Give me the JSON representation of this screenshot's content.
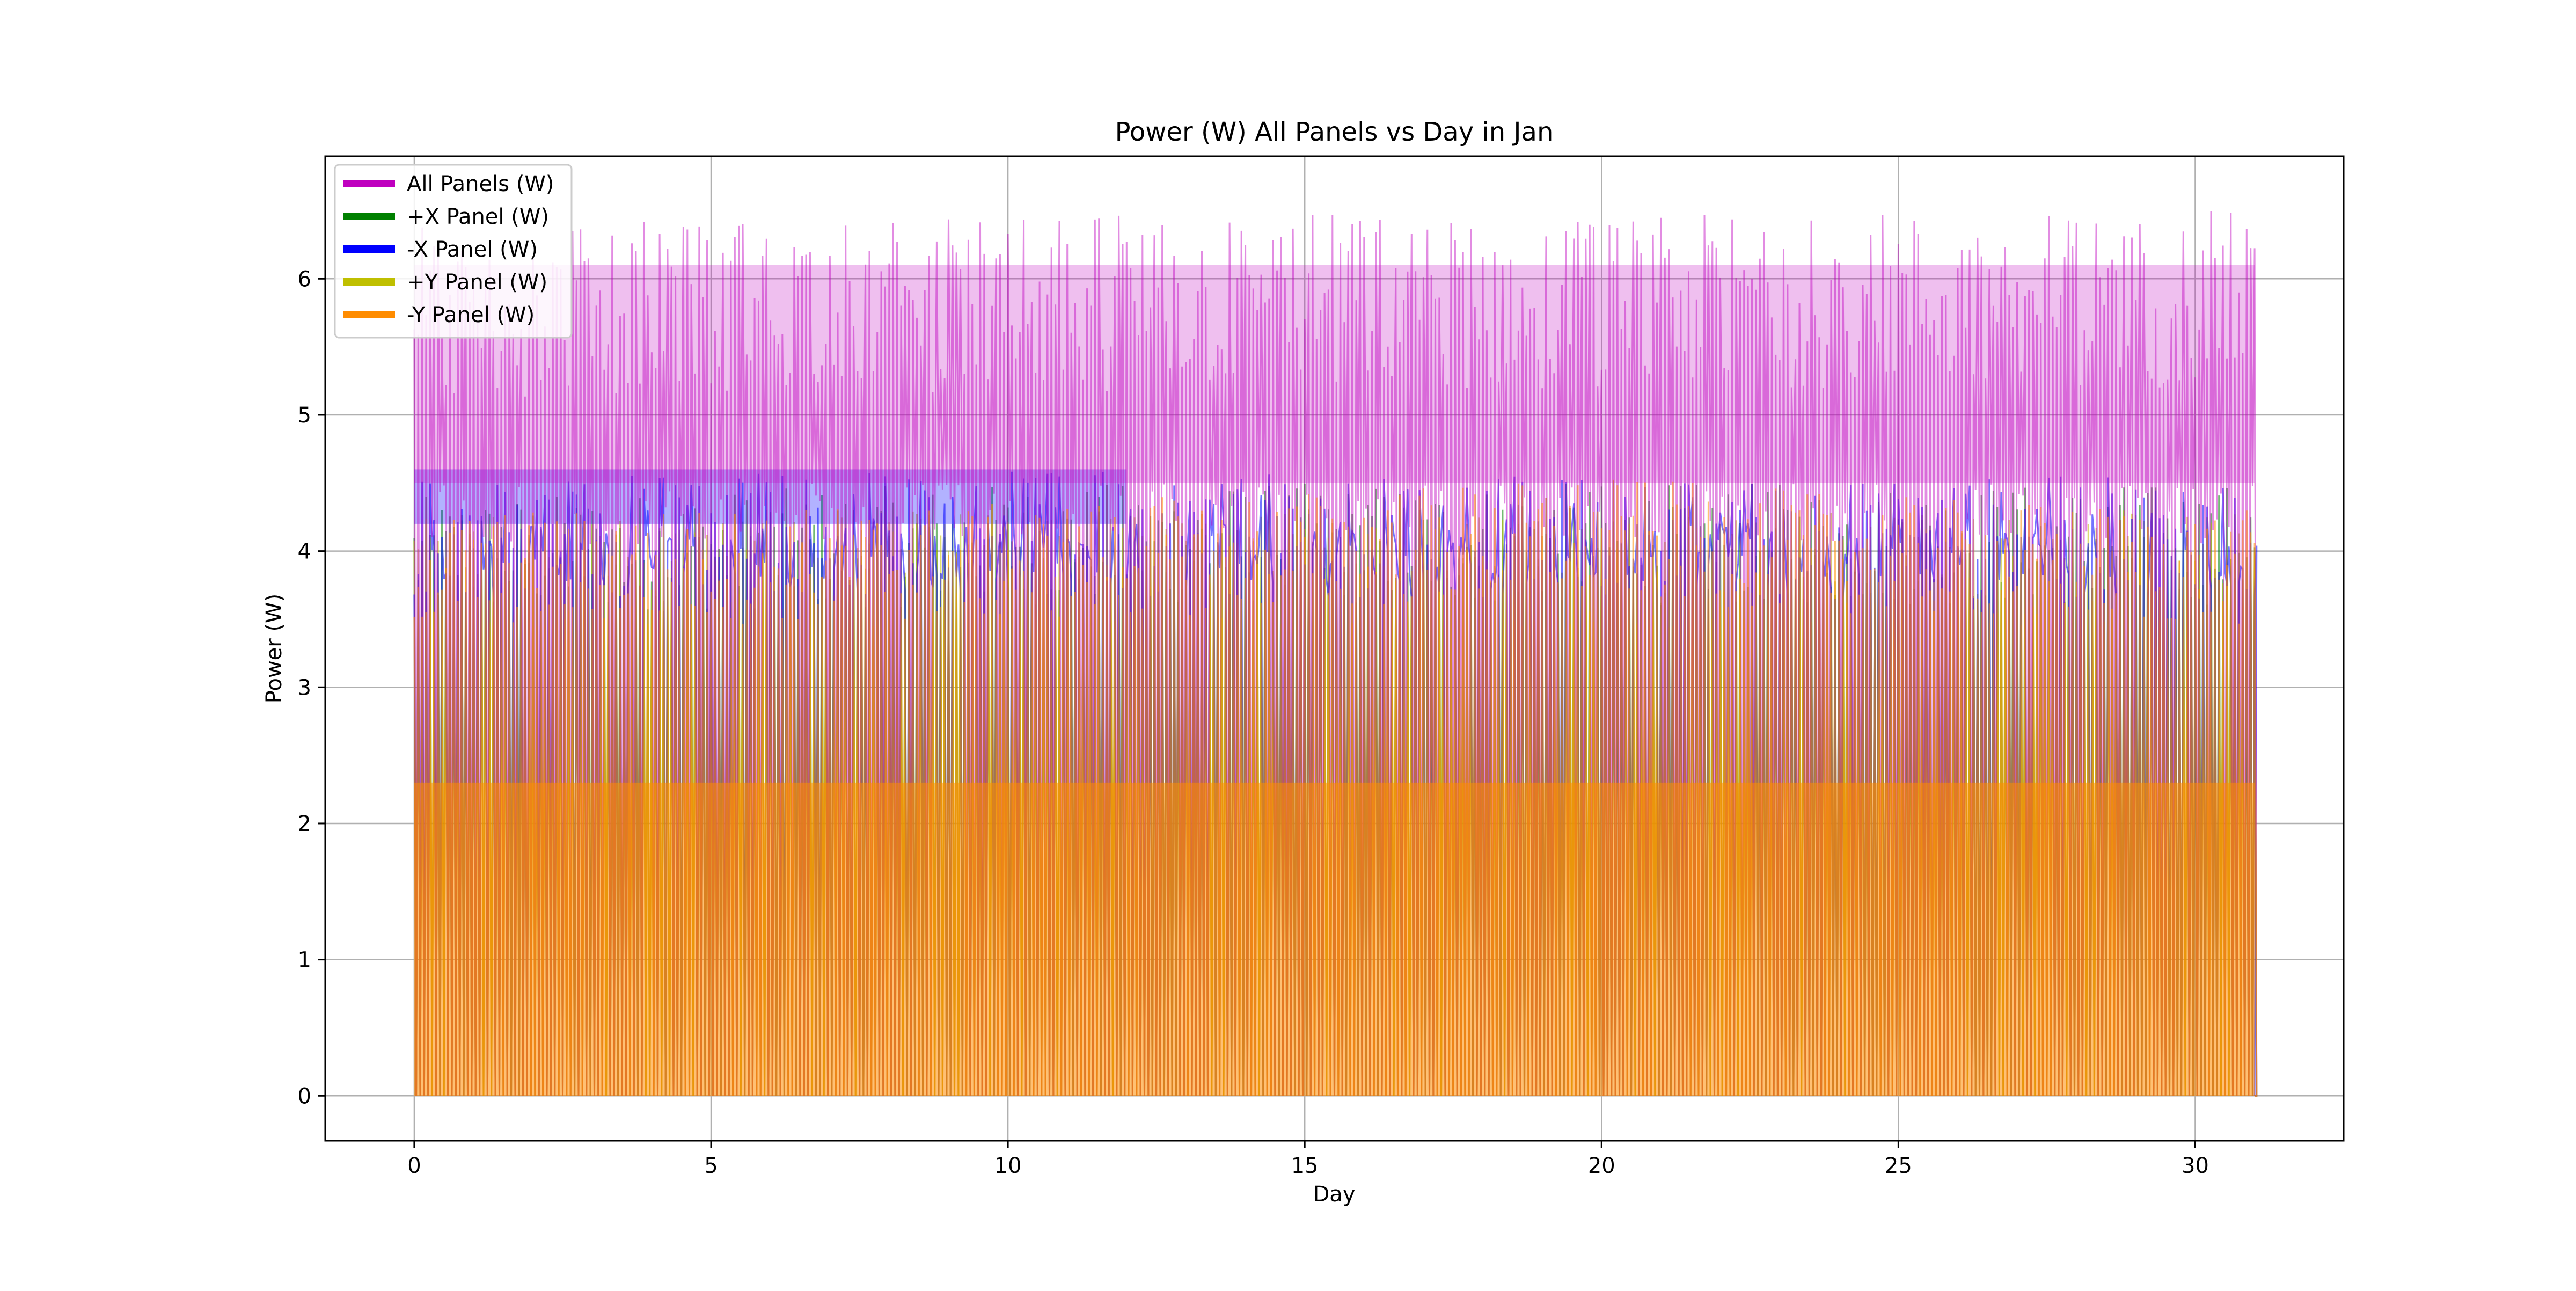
{
  "chart_data": {
    "type": "line",
    "title": "Power (W) All Panels vs Day in Jan",
    "xlabel": "Day",
    "ylabel": "Power (W)",
    "xlim": [
      -1.5,
      32.5
    ],
    "ylim": [
      -0.33,
      6.9
    ],
    "xticks": [
      0,
      5,
      10,
      15,
      20,
      25,
      30
    ],
    "yticks": [
      0,
      1,
      2,
      3,
      4,
      5,
      6
    ],
    "grid": true,
    "legend_position": "top-left",
    "x_range": [
      0,
      31
    ],
    "sampling": "approx. 15 orbital passes per day, oscillating between 0 W and peak",
    "series": [
      {
        "name": "All Panels (W)",
        "color": "#bf00bf",
        "peak_approx": 6.45,
        "trough_approx": 0.0,
        "dense_band": [
          4.5,
          6.1
        ],
        "envelope_points": [
          [
            0,
            6.4
          ],
          [
            5,
            6.45
          ],
          [
            10,
            6.45
          ],
          [
            15,
            6.5
          ],
          [
            20,
            6.45
          ],
          [
            25,
            6.5
          ],
          [
            30,
            6.5
          ],
          [
            31,
            6.5
          ]
        ]
      },
      {
        "name": "+X Panel (W)",
        "color": "#008000",
        "peak_approx": 4.5,
        "trough_approx": 0.0,
        "envelope_points": [
          [
            0,
            4.4
          ],
          [
            10,
            4.5
          ],
          [
            20,
            4.5
          ],
          [
            31,
            4.5
          ]
        ]
      },
      {
        "name": "-X Panel (W)",
        "color": "#0000ff",
        "peak_approx": 4.55,
        "trough_approx": 0.0,
        "dense_band": [
          4.2,
          4.6
        ],
        "envelope_points": [
          [
            0,
            4.55
          ],
          [
            5,
            4.6
          ],
          [
            10,
            4.6
          ],
          [
            20,
            4.55
          ],
          [
            31,
            4.55
          ]
        ]
      },
      {
        "name": "+Y Panel (W)",
        "color": "#bfbf00",
        "peak_approx": 4.3,
        "trough_approx": 0.0,
        "envelope_points": [
          [
            0,
            4.3
          ],
          [
            15,
            4.3
          ],
          [
            31,
            4.3
          ]
        ]
      },
      {
        "name": "-Y Panel (W)",
        "color": "#ff8c00",
        "peak_approx": 4.4,
        "trough_approx": 0.0,
        "envelope_points": [
          [
            0,
            4.3
          ],
          [
            10,
            4.35
          ],
          [
            20,
            4.55
          ],
          [
            25,
            4.4
          ],
          [
            31,
            4.3
          ]
        ]
      }
    ]
  }
}
